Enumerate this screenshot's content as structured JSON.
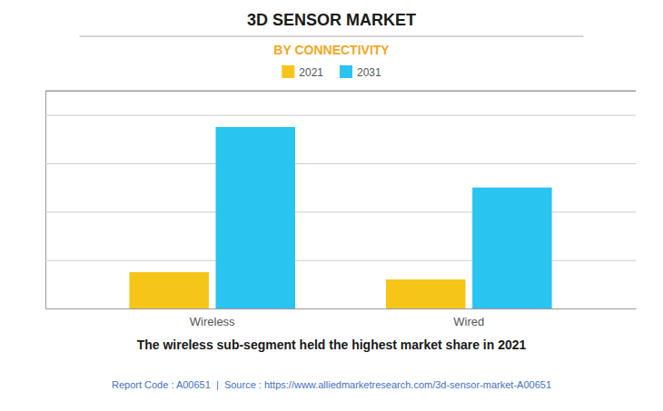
{
  "chart_data": {
    "type": "bar",
    "title": "3D SENSOR MARKET",
    "subtitle": "BY CONNECTIVITY",
    "categories": [
      "Wireless",
      "Wired"
    ],
    "series": [
      {
        "name": "2021",
        "color": "#F5C518",
        "values": [
          1.5,
          1.2
        ]
      },
      {
        "name": "2031",
        "color": "#29C4F0",
        "values": [
          7.5,
          5.0
        ]
      }
    ],
    "ylim": [
      0,
      9
    ],
    "yticks": [
      0,
      2,
      4,
      6,
      8
    ],
    "grid": true,
    "legend": "top",
    "tick_labels": "x",
    "annotations": [
      "The wireless sub-segment held the highest market share in 2021",
      "Report Code : A00651  |  Source : https://www.alliedmarketresearch.com/3d-sensor-market-A00651"
    ]
  }
}
